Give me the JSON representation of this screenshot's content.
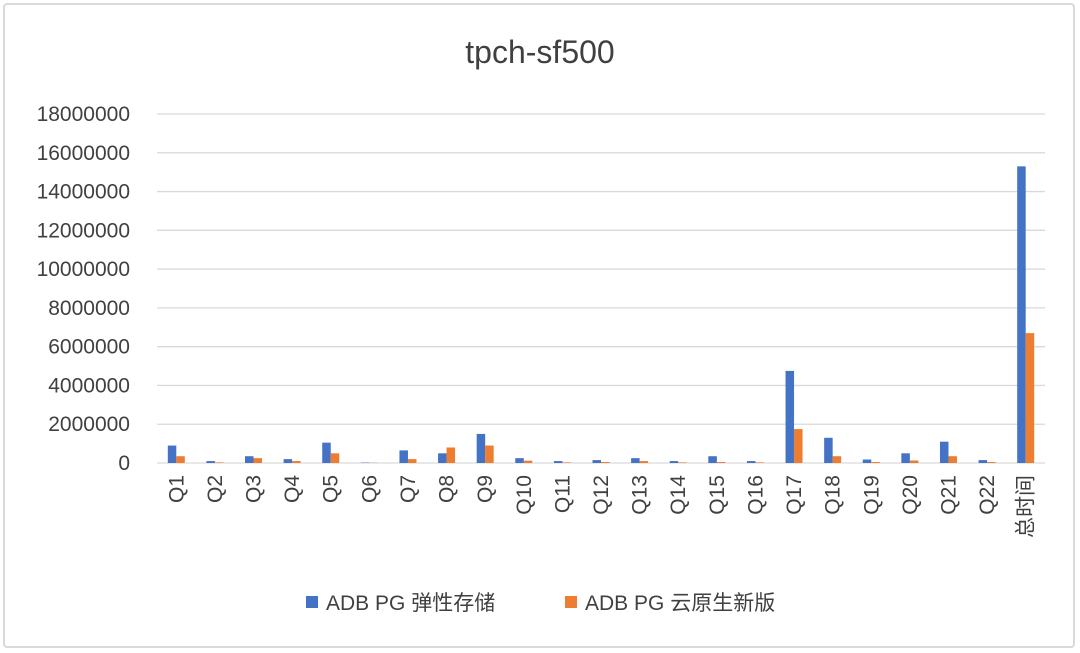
{
  "chart_data": {
    "type": "bar",
    "title": "tpch-sf500",
    "xlabel": "",
    "ylabel": "",
    "ylim": [
      0,
      18000000
    ],
    "y_ticks": [
      "0",
      "2000000",
      "4000000",
      "6000000",
      "8000000",
      "10000000",
      "12000000",
      "14000000",
      "16000000",
      "18000000"
    ],
    "grid": true,
    "legend_position": "bottom",
    "categories": [
      "Q1",
      "Q2",
      "Q3",
      "Q4",
      "Q5",
      "Q6",
      "Q7",
      "Q8",
      "Q9",
      "Q10",
      "Q11",
      "Q12",
      "Q13",
      "Q14",
      "Q15",
      "Q16",
      "Q17",
      "Q18",
      "Q19",
      "Q20",
      "Q21",
      "Q22",
      "总时间"
    ],
    "series": [
      {
        "name": "ADB PG 弹性存储",
        "color": "#4472c4",
        "values": [
          900000,
          100000,
          350000,
          200000,
          1050000,
          20000,
          650000,
          500000,
          1500000,
          250000,
          100000,
          150000,
          250000,
          100000,
          350000,
          100000,
          4750000,
          1300000,
          180000,
          500000,
          1100000,
          150000,
          15300000
        ]
      },
      {
        "name": "ADB PG 云原生新版",
        "color": "#ed7d31",
        "values": [
          350000,
          30000,
          250000,
          100000,
          500000,
          10000,
          200000,
          800000,
          900000,
          120000,
          30000,
          50000,
          100000,
          30000,
          50000,
          30000,
          1750000,
          350000,
          50000,
          130000,
          350000,
          50000,
          6700000
        ]
      }
    ]
  }
}
